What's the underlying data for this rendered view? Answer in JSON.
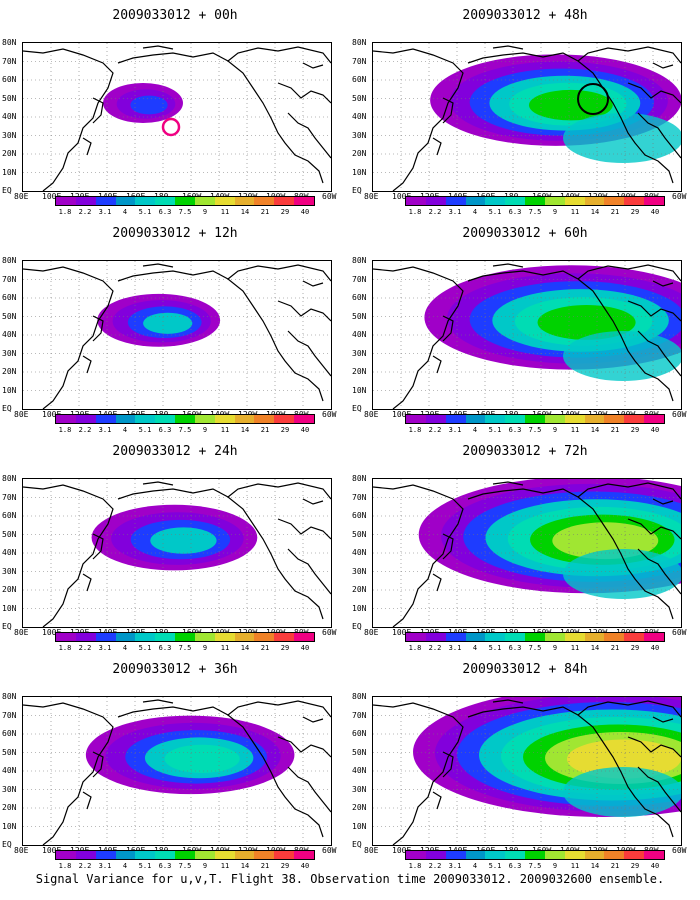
{
  "panels": [
    {
      "title": "2009033012 + 00h",
      "lead": 0
    },
    {
      "title": "2009033012 + 48h",
      "lead": 48
    },
    {
      "title": "2009033012 + 12h",
      "lead": 12
    },
    {
      "title": "2009033012 + 60h",
      "lead": 60
    },
    {
      "title": "2009033012 + 24h",
      "lead": 24
    },
    {
      "title": "2009033012 + 72h",
      "lead": 72
    },
    {
      "title": "2009033012 + 36h",
      "lead": 36
    },
    {
      "title": "2009033012 + 84h",
      "lead": 84
    }
  ],
  "y_labels": [
    "80N",
    "70N",
    "60N",
    "50N",
    "40N",
    "30N",
    "20N",
    "10N",
    "EQ"
  ],
  "x_labels": [
    "80E",
    "100E",
    "120E",
    "140E",
    "160E",
    "180",
    "160W",
    "140W",
    "120W",
    "100W",
    "80W",
    "60W"
  ],
  "colorbar": {
    "labels": [
      "1.8",
      "2.2",
      "3.1",
      "4",
      "5.1",
      "6.3",
      "7.5",
      "9",
      "11",
      "14",
      "21",
      "29",
      "40"
    ],
    "colors": [
      "#a000c8",
      "#8200dc",
      "#1e3cff",
      "#0096c8",
      "#00c8c8",
      "#00dcb4",
      "#00d200",
      "#a0e632",
      "#e6dc32",
      "#e6af2d",
      "#f08228",
      "#fa3c3c",
      "#f00082"
    ]
  },
  "caption": "Signal Variance for u,v,T. Flight 38. Observation time 2009033012. 2009032600 ensemble."
}
